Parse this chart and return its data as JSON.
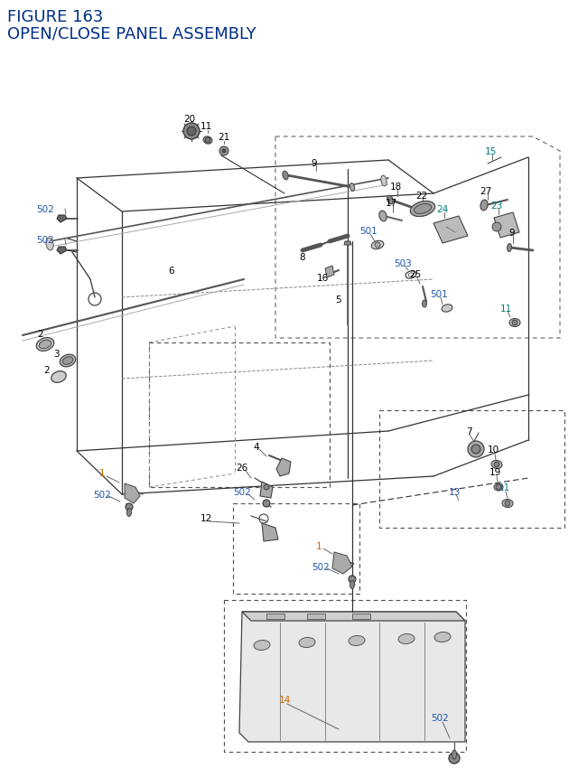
{
  "title_line1": "FIGURE 163",
  "title_line2": "OPEN/CLOSE PANEL ASSEMBLY",
  "title_color": "#003087",
  "title_fontsize": 13,
  "bg_color": "#ffffff",
  "label_color_black": "#000000",
  "label_color_blue": "#2255aa",
  "label_color_teal": "#007b7b",
  "label_color_orange": "#cc6600",
  "label_fontsize": 7.5
}
